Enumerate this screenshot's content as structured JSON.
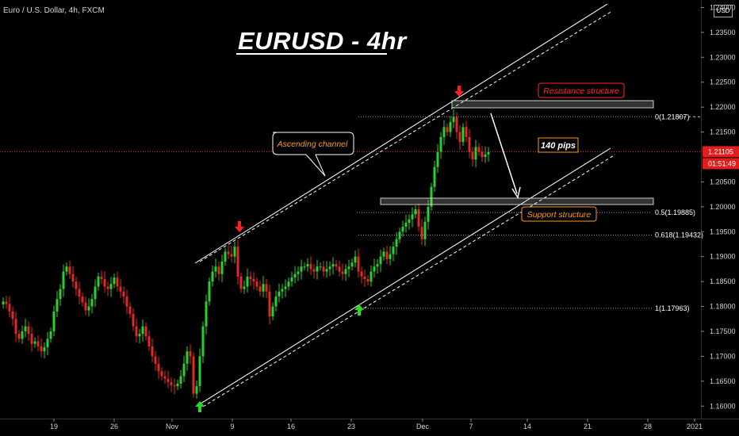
{
  "header": {
    "symbol": "Euro / U.S. Dollar, 4h, FXCM",
    "title": "EURUSD - 4hr",
    "currency": "USD"
  },
  "annotations": {
    "ascending_channel": "Ascending channel",
    "resistance": "Resistance structure",
    "support": "Support structure",
    "pips": "140 pips"
  },
  "price_tags": {
    "current": "1.21105",
    "countdown": "01:51:49"
  },
  "colors": {
    "up": "#2bd12b",
    "down": "#e02a2a",
    "resistance": "#ff2a2a",
    "support": "#ff9a1f",
    "channel": "#ffffff",
    "price_line": "#e02a2a"
  },
  "chart_data": {
    "type": "candlestick",
    "symbol": "EURUSD",
    "timeframe": "4h",
    "ylim": [
      1.1575,
      1.2415
    ],
    "y_ticks": [
      "1.16000",
      "1.16500",
      "1.17000",
      "1.17500",
      "1.18000",
      "1.18500",
      "1.19000",
      "1.19500",
      "1.20000",
      "1.20500",
      "1.21500",
      "1.22000",
      "1.22500",
      "1.23000",
      "1.23500",
      "1.24000"
    ],
    "x_ticks": [
      "19",
      "26",
      "Nov",
      "9",
      "16",
      "23",
      "Dec",
      "7",
      "14",
      "21",
      "28",
      "2021"
    ],
    "fib_levels": [
      {
        "label": "0(1.21807)",
        "value": 1.21807
      },
      {
        "label": "0.5(1.19885)",
        "value": 1.19885
      },
      {
        "label": "0.618(1.19432)",
        "value": 1.19432
      },
      {
        "label": "1(1.17963)",
        "value": 1.17963
      }
    ],
    "last_price": 1.21105,
    "candle_closes": [
      1.181,
      1.1805,
      1.179,
      1.1775,
      1.1745,
      1.1735,
      1.175,
      1.176,
      1.1745,
      1.1725,
      1.173,
      1.172,
      1.171,
      1.1718,
      1.1735,
      1.175,
      1.179,
      1.1815,
      1.1835,
      1.187,
      1.188,
      1.1865,
      1.185,
      1.1835,
      1.182,
      1.1808,
      1.1792,
      1.18,
      1.1815,
      1.184,
      1.186,
      1.1855,
      1.184,
      1.1835,
      1.1845,
      1.1858,
      1.184,
      1.183,
      1.182,
      1.18,
      1.1785,
      1.176,
      1.174,
      1.1745,
      1.176,
      1.174,
      1.172,
      1.17,
      1.1685,
      1.167,
      1.166,
      1.1655,
      1.1648,
      1.1642,
      1.164,
      1.1645,
      1.166,
      1.1685,
      1.171,
      1.17,
      1.1625,
      1.164,
      1.17,
      1.176,
      1.181,
      1.185,
      1.187,
      1.188,
      1.1865,
      1.189,
      1.191,
      1.1905,
      1.19,
      1.192,
      1.186,
      1.1835,
      1.184,
      1.186,
      1.1855,
      1.185,
      1.184,
      1.183,
      1.1845,
      1.183,
      1.178,
      1.18,
      1.182,
      1.183,
      1.1835,
      1.184,
      1.185,
      1.1858,
      1.1865,
      1.187,
      1.188,
      1.188,
      1.1885,
      1.1875,
      1.187,
      1.188,
      1.188,
      1.187,
      1.1875,
      1.188,
      1.1885,
      1.188,
      1.187,
      1.1865,
      1.1875,
      1.188,
      1.1888,
      1.19,
      1.187,
      1.186,
      1.1855,
      1.185,
      1.187,
      1.188,
      1.1885,
      1.19,
      1.191,
      1.1895,
      1.1905,
      1.192,
      1.1935,
      1.195,
      1.196,
      1.1968,
      1.1975,
      1.1985,
      1.1995,
      1.196,
      1.1935,
      1.197,
      1.2,
      1.204,
      1.208,
      1.211,
      1.214,
      1.216,
      1.215,
      1.217,
      1.218,
      1.215,
      1.213,
      1.216,
      1.214,
      1.211,
      1.2095,
      1.212,
      1.211,
      1.21,
      1.2105,
      1.211
    ]
  }
}
